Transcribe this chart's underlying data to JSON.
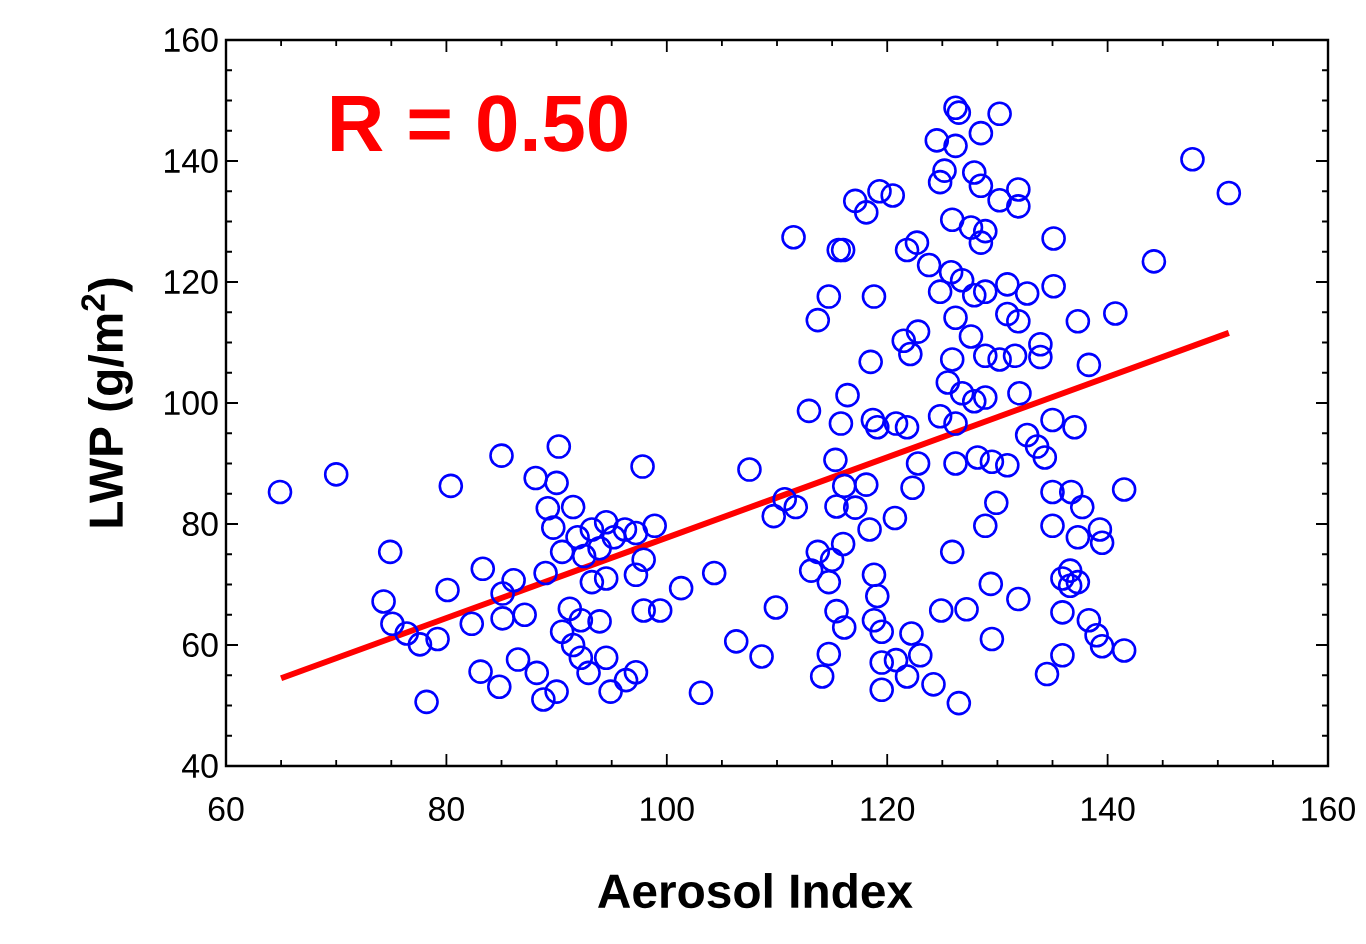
{
  "chart_data": {
    "type": "scatter",
    "xlabel": "Aerosol Index",
    "ylabel": "LWP (g/m$^{2}$)",
    "annotations": [
      "R = 0.50"
    ],
    "xlim": [
      60,
      160
    ],
    "ylim": [
      40,
      160
    ],
    "xticks": [
      60,
      80,
      100,
      120,
      140,
      160
    ],
    "yticks": [
      40,
      60,
      80,
      100,
      120,
      140,
      160
    ],
    "marker": "circle",
    "series": [
      {
        "color": "#0000ff",
        "x": [
          64.9,
          70.0,
          80.4,
          85.0,
          90.2,
          88.1,
          90.0,
          97.8,
          89.2,
          89.7,
          91.5,
          74.9,
          74.3,
          75.1,
          76.4,
          77.6,
          79.2,
          80.1,
          82.3,
          83.3,
          85.1,
          86.1,
          85.1,
          87.1,
          83.1,
          84.8,
          86.5,
          88.2,
          78.2,
          88.8,
          90.0,
          89.0,
          90.5,
          91.9,
          93.2,
          94.5,
          92.5,
          93.9,
          95.2,
          96.2,
          97.2,
          98.9,
          97.9,
          97.2,
          93.2,
          94.5,
          91.2,
          92.2,
          93.9,
          90.5,
          91.5,
          92.2,
          92.9,
          94.5,
          94.9,
          96.3,
          97.2,
          97.9,
          99.4,
          101.3,
          104.3,
          103.1,
          107.5,
          106.3,
          108.6,
          109.9,
          109.7,
          110.7,
          111.7,
          111.5,
          112.9,
          113.7,
          114.7,
          115.6,
          116.0,
          117.1,
          118.1,
          119.3,
          120.5,
          118.8,
          118.5,
          116.4,
          115.8,
          118.7,
          119.1,
          120.8,
          121.8,
          115.3,
          116.1,
          118.1,
          115.4,
          117.1,
          118.4,
          120.7,
          113.7,
          115.0,
          116.0,
          113.1,
          114.7,
          118.8,
          119.1,
          115.4,
          116.1,
          118.8,
          119.5,
          114.7,
          114.1,
          119.5,
          120.8,
          122.2,
          123.0,
          121.8,
          119.5,
          124.2,
          126.5,
          124.9,
          127.2,
          125.9,
          129.4,
          131.9,
          129.5,
          122.3,
          122.8,
          121.5,
          122.1,
          122.8,
          121.8,
          122.7,
          126.2,
          126.5,
          130.2,
          124.5,
          126.2,
          128.5,
          124.8,
          125.2,
          127.9,
          128.5,
          130.2,
          131.9,
          131.9,
          125.9,
          127.6,
          128.9,
          128.5,
          123.8,
          124.8,
          125.8,
          126.8,
          127.9,
          128.9,
          130.9,
          132.7,
          135.1,
          135.1,
          130.9,
          131.9,
          126.2,
          127.6,
          125.9,
          128.9,
          130.2,
          131.6,
          133.9,
          133.9,
          137.3,
          138.3,
          140.7,
          144.2,
          147.7,
          151.0,
          125.5,
          126.8,
          127.9,
          128.9,
          124.8,
          126.2,
          132.0,
          132.7,
          137.0,
          135.0,
          133.6,
          134.3,
          126.2,
          128.2,
          129.5,
          130.9,
          129.9,
          128.9,
          135.0,
          136.7,
          137.7,
          141.5,
          135.0,
          137.3,
          139.3,
          139.5,
          135.9,
          136.6,
          137.3,
          135.9,
          138.3,
          139.0,
          139.5,
          141.5,
          135.9,
          134.5,
          136.6
        ],
        "values": [
          85.3,
          88.2,
          86.3,
          91.3,
          92.8,
          87.6,
          86.8,
          89.5,
          82.6,
          79.4,
          82.8,
          75.4,
          67.2,
          63.5,
          61.9,
          60.1,
          61.0,
          69.1,
          63.5,
          72.6,
          68.5,
          70.7,
          64.4,
          65.0,
          55.6,
          53.1,
          57.6,
          55.4,
          50.6,
          51.0,
          52.3,
          71.9,
          75.4,
          77.8,
          79.1,
          80.3,
          74.7,
          76.0,
          77.8,
          79.1,
          78.5,
          79.7,
          74.1,
          71.6,
          70.4,
          71.0,
          66.0,
          64.1,
          63.9,
          62.2,
          60.0,
          57.9,
          55.4,
          57.9,
          52.3,
          54.2,
          55.5,
          65.7,
          65.7,
          69.4,
          71.9,
          52.1,
          89.0,
          60.6,
          58.1,
          66.2,
          81.3,
          84.1,
          82.8,
          127.4,
          98.7,
          113.7,
          117.6,
          125.3,
          125.3,
          133.4,
          131.5,
          135.0,
          134.3,
          117.6,
          106.8,
          101.3,
          96.6,
          97.2,
          96.0,
          96.6,
          96.0,
          90.6,
          86.3,
          86.5,
          82.9,
          82.7,
          79.1,
          81.0,
          75.4,
          74.1,
          76.7,
          72.3,
          70.4,
          71.6,
          68.1,
          65.6,
          62.9,
          64.1,
          62.2,
          58.5,
          54.8,
          57.1,
          57.5,
          61.9,
          58.3,
          54.8,
          52.6,
          53.5,
          50.4,
          65.7,
          65.9,
          75.4,
          70.1,
          67.6,
          61.0,
          86.0,
          90.0,
          110.3,
          108.1,
          111.8,
          125.3,
          126.5,
          148.8,
          148.0,
          147.8,
          143.4,
          142.5,
          144.6,
          136.5,
          138.4,
          138.1,
          135.9,
          133.5,
          135.3,
          132.5,
          130.3,
          129.0,
          128.4,
          126.5,
          122.8,
          118.4,
          121.6,
          120.3,
          117.8,
          118.4,
          119.6,
          118.1,
          127.2,
          119.3,
          114.7,
          113.5,
          114.1,
          111.0,
          107.2,
          107.8,
          107.2,
          107.8,
          109.7,
          107.6,
          113.5,
          106.3,
          114.8,
          123.4,
          140.3,
          134.7,
          103.4,
          101.6,
          100.3,
          100.9,
          97.8,
          96.6,
          101.6,
          94.7,
          96.0,
          97.2,
          92.8,
          91.0,
          90.0,
          91.0,
          90.3,
          89.7,
          83.5,
          79.7,
          85.3,
          85.3,
          82.8,
          85.7,
          79.7,
          77.8,
          79.1,
          76.9,
          71.0,
          69.8,
          70.4,
          65.4,
          64.1,
          61.6,
          59.8,
          59.1,
          58.3,
          55.2,
          72.3
        ]
      },
      {
        "type": "line",
        "color": "#ff0000",
        "marker": "none",
        "x": [
          65,
          151
        ],
        "values": [
          54.5,
          111.6
        ]
      }
    ]
  }
}
